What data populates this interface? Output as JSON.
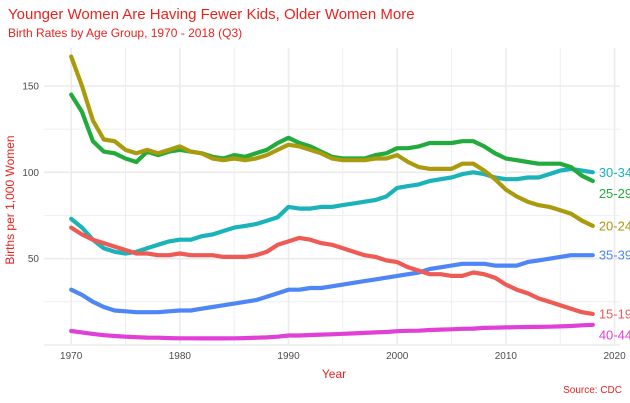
{
  "colors": {
    "title": "#e8231f",
    "grid": "#ebebeb",
    "tick": "#4d4d4d"
  },
  "chart_data": {
    "type": "line",
    "title": "Younger Women Are Having Fewer Kids, Older Women More",
    "subtitle": "Birth Rates by Age Group, 1970 - 2018 (Q3)",
    "xlabel": "Year",
    "ylabel": "Births per 1,000 Women",
    "source": "Source: CDC",
    "xlim": [
      1967.5,
      2020.5
    ],
    "ylim": [
      0,
      172
    ],
    "xticks": [
      1970,
      1980,
      1990,
      2000,
      2010,
      2020
    ],
    "yticks": [
      50,
      100,
      150
    ],
    "grid": true,
    "legend": "direct labels at line ends",
    "series": [
      {
        "name": "30-34",
        "color": "#1ab3b8",
        "x": [
          1970,
          1971,
          1972,
          1973,
          1974,
          1975,
          1976,
          1977,
          1978,
          1979,
          1980,
          1981,
          1982,
          1983,
          1984,
          1985,
          1986,
          1987,
          1988,
          1989,
          1990,
          1991,
          1992,
          1993,
          1994,
          1995,
          1996,
          1997,
          1998,
          1999,
          2000,
          2001,
          2002,
          2003,
          2004,
          2005,
          2006,
          2007,
          2008,
          2009,
          2010,
          2011,
          2012,
          2013,
          2014,
          2015,
          2016,
          2017,
          2018
        ],
        "values": [
          73,
          68,
          61,
          56,
          54,
          53,
          54,
          56,
          58,
          60,
          61,
          61,
          63,
          64,
          66,
          68,
          69,
          70,
          72,
          74,
          80,
          79,
          79,
          80,
          80,
          81,
          82,
          83,
          84,
          86,
          91,
          92,
          93,
          95,
          96,
          97,
          99,
          100,
          99,
          97,
          96,
          96,
          97,
          97,
          99,
          101,
          102,
          101,
          100
        ]
      },
      {
        "name": "25-29",
        "color": "#22ab3c",
        "x": [
          1970,
          1971,
          1972,
          1973,
          1974,
          1975,
          1976,
          1977,
          1978,
          1979,
          1980,
          1981,
          1982,
          1983,
          1984,
          1985,
          1986,
          1987,
          1988,
          1989,
          1990,
          1991,
          1992,
          1993,
          1994,
          1995,
          1996,
          1997,
          1998,
          1999,
          2000,
          2001,
          2002,
          2003,
          2004,
          2005,
          2006,
          2007,
          2008,
          2009,
          2010,
          2011,
          2012,
          2013,
          2014,
          2015,
          2016,
          2017,
          2018
        ],
        "values": [
          145,
          135,
          118,
          112,
          111,
          108,
          106,
          112,
          110,
          112,
          113,
          112,
          111,
          109,
          108,
          110,
          109,
          111,
          113,
          117,
          120,
          117,
          115,
          112,
          109,
          108,
          108,
          108,
          110,
          111,
          114,
          114,
          115,
          117,
          117,
          117,
          118,
          118,
          115,
          111,
          108,
          107,
          106,
          105,
          105,
          105,
          103,
          98,
          95
        ]
      },
      {
        "name": "20-24",
        "color": "#a99a0e",
        "x": [
          1970,
          1971,
          1972,
          1973,
          1974,
          1975,
          1976,
          1977,
          1978,
          1979,
          1980,
          1981,
          1982,
          1983,
          1984,
          1985,
          1986,
          1987,
          1988,
          1989,
          1990,
          1991,
          1992,
          1993,
          1994,
          1995,
          1996,
          1997,
          1998,
          1999,
          2000,
          2001,
          2002,
          2003,
          2004,
          2005,
          2006,
          2007,
          2008,
          2009,
          2010,
          2011,
          2012,
          2013,
          2014,
          2015,
          2016,
          2017,
          2018
        ],
        "values": [
          167,
          150,
          130,
          119,
          118,
          113,
          111,
          113,
          111,
          113,
          115,
          112,
          111,
          108,
          107,
          108,
          107,
          108,
          110,
          113,
          116,
          115,
          113,
          111,
          108,
          107,
          107,
          107,
          108,
          108,
          110,
          106,
          103,
          102,
          102,
          102,
          105,
          105,
          101,
          96,
          90,
          86,
          83,
          81,
          80,
          78,
          76,
          72,
          69
        ]
      },
      {
        "name": "35-39",
        "color": "#4f86f7",
        "x": [
          1970,
          1971,
          1972,
          1973,
          1974,
          1975,
          1976,
          1977,
          1978,
          1979,
          1980,
          1981,
          1982,
          1983,
          1984,
          1985,
          1986,
          1987,
          1988,
          1989,
          1990,
          1991,
          1992,
          1993,
          1994,
          1995,
          1996,
          1997,
          1998,
          1999,
          2000,
          2001,
          2002,
          2003,
          2004,
          2005,
          2006,
          2007,
          2008,
          2009,
          2010,
          2011,
          2012,
          2013,
          2014,
          2015,
          2016,
          2017,
          2018
        ],
        "values": [
          32,
          29,
          25,
          22,
          20,
          19.5,
          19,
          19,
          19,
          19.5,
          20,
          20,
          21,
          22,
          23,
          24,
          25,
          26,
          28,
          30,
          32,
          32,
          33,
          33,
          34,
          35,
          36,
          37,
          38,
          39,
          40,
          41,
          42,
          44,
          45,
          46,
          47,
          47,
          47,
          46,
          46,
          46,
          48,
          49,
          50,
          51,
          52,
          52,
          52
        ]
      },
      {
        "name": "15-19",
        "color": "#ef5a55",
        "x": [
          1970,
          1971,
          1972,
          1973,
          1974,
          1975,
          1976,
          1977,
          1978,
          1979,
          1980,
          1981,
          1982,
          1983,
          1984,
          1985,
          1986,
          1987,
          1988,
          1989,
          1990,
          1991,
          1992,
          1993,
          1994,
          1995,
          1996,
          1997,
          1998,
          1999,
          2000,
          2001,
          2002,
          2003,
          2004,
          2005,
          2006,
          2007,
          2008,
          2009,
          2010,
          2011,
          2012,
          2013,
          2014,
          2015,
          2016,
          2017,
          2018
        ],
        "values": [
          68,
          64,
          61,
          59,
          57,
          55,
          53,
          53,
          52,
          52,
          53,
          52,
          52,
          52,
          51,
          51,
          51,
          52,
          54,
          58,
          60,
          62,
          61,
          59,
          58,
          56,
          54,
          52,
          51,
          49,
          48,
          45,
          43,
          41,
          41,
          40,
          40,
          42,
          41,
          39,
          35,
          32,
          30,
          27,
          25,
          23,
          21,
          19,
          18
        ]
      },
      {
        "name": "40-44",
        "color": "#e040d8",
        "x": [
          1970,
          1971,
          1972,
          1973,
          1974,
          1975,
          1976,
          1977,
          1978,
          1979,
          1980,
          1981,
          1982,
          1983,
          1984,
          1985,
          1986,
          1987,
          1988,
          1989,
          1990,
          1991,
          1992,
          1993,
          1994,
          1995,
          1996,
          1997,
          1998,
          1999,
          2000,
          2001,
          2002,
          2003,
          2004,
          2005,
          2006,
          2007,
          2008,
          2009,
          2010,
          2011,
          2012,
          2013,
          2014,
          2015,
          2016,
          2017,
          2018
        ],
        "values": [
          8.1,
          7.3,
          6.4,
          5.7,
          5.2,
          4.8,
          4.5,
          4.3,
          4.2,
          4,
          3.9,
          3.9,
          3.8,
          3.8,
          3.8,
          3.9,
          4,
          4.2,
          4.4,
          4.8,
          5.5,
          5.5,
          5.8,
          6,
          6.2,
          6.5,
          6.7,
          7,
          7.3,
          7.5,
          8,
          8.2,
          8.3,
          8.7,
          8.9,
          9.1,
          9.4,
          9.5,
          9.9,
          10,
          10.2,
          10.3,
          10.4,
          10.5,
          10.6,
          10.8,
          11,
          11.4,
          11.7
        ]
      }
    ]
  }
}
